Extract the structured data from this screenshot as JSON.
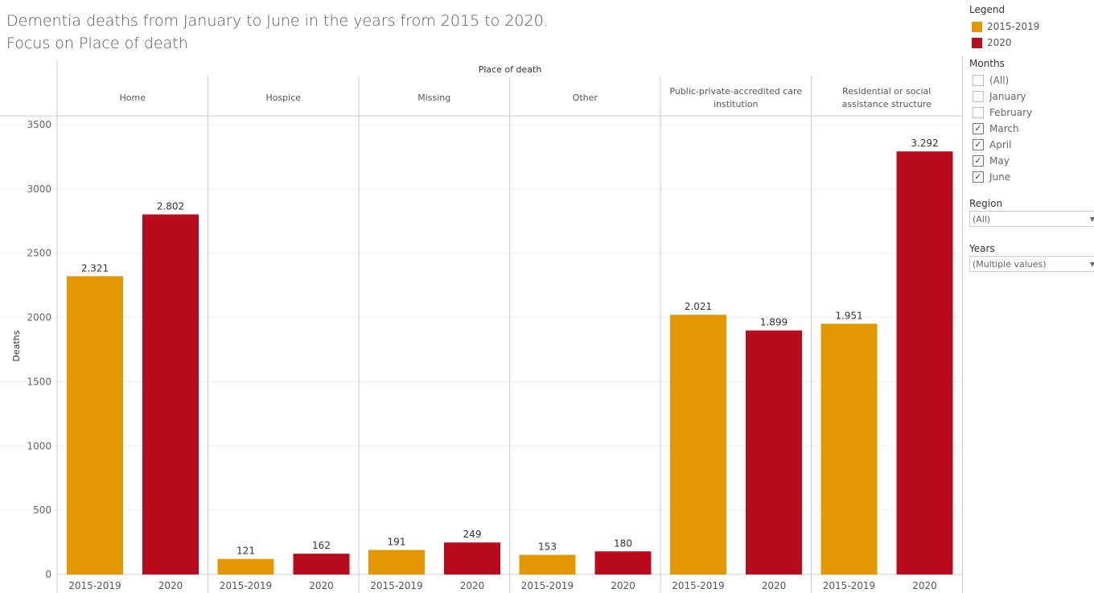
{
  "title_line1": "Dementia deaths from January to June in the years from 2015 to 2020.",
  "title_line2": "Focus on Place of death",
  "legend": {
    "title": "Legend",
    "items": [
      {
        "label": "2015-2019",
        "color": "#E39700"
      },
      {
        "label": "2020",
        "color": "#B90B1E"
      }
    ]
  },
  "months": {
    "title": "Months",
    "items": [
      {
        "label": "(All)",
        "checked": false
      },
      {
        "label": "January",
        "checked": false
      },
      {
        "label": "February",
        "checked": false
      },
      {
        "label": "March",
        "checked": true
      },
      {
        "label": "April",
        "checked": true
      },
      {
        "label": "May",
        "checked": true
      },
      {
        "label": "June",
        "checked": true
      }
    ]
  },
  "region": {
    "title": "Region",
    "value": "(All)"
  },
  "years": {
    "title": "Years",
    "value": "(Multiple values)"
  },
  "chart_data": {
    "type": "bar",
    "column_header": "Place of death",
    "ylabel": "Deaths",
    "ylim": [
      0,
      3500
    ],
    "yticks": [
      0,
      500,
      1000,
      1500,
      2000,
      2500,
      3000,
      3500
    ],
    "series_names": [
      "2015-2019",
      "2020"
    ],
    "panels": [
      {
        "name": "Home",
        "values": [
          2321,
          2802
        ],
        "labels": [
          "2.321",
          "2.802"
        ]
      },
      {
        "name": "Hospice",
        "values": [
          121,
          162
        ],
        "labels": [
          "121",
          "162"
        ]
      },
      {
        "name": "Missing",
        "values": [
          191,
          249
        ],
        "labels": [
          "191",
          "249"
        ]
      },
      {
        "name": "Other",
        "values": [
          153,
          180
        ],
        "labels": [
          "153",
          "180"
        ]
      },
      {
        "name": "Public-private-accredited care institution",
        "values": [
          2021,
          1899
        ],
        "labels": [
          "2.021",
          "1.899"
        ]
      },
      {
        "name": "Residential or social assistance structure",
        "values": [
          1951,
          3292
        ],
        "labels": [
          "1.951",
          "3.292"
        ]
      }
    ]
  }
}
